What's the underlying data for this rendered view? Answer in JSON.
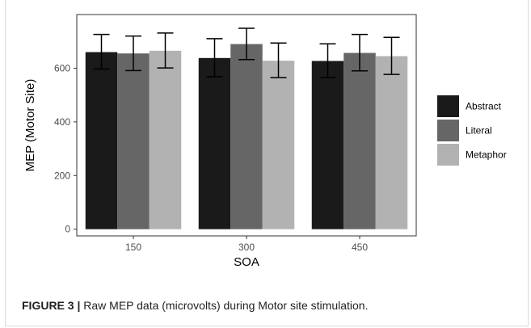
{
  "chart_data": {
    "type": "bar",
    "categories": [
      "150",
      "300",
      "450"
    ],
    "series": [
      {
        "name": "Abstract",
        "color": "#1a1a1a",
        "values": [
          660,
          638,
          627
        ],
        "err_low": [
          597,
          568,
          565
        ],
        "err_high": [
          726,
          710,
          691
        ]
      },
      {
        "name": "Literal",
        "color": "#666666",
        "values": [
          655,
          690,
          657
        ],
        "err_low": [
          591,
          632,
          590
        ],
        "err_high": [
          720,
          749,
          726
        ]
      },
      {
        "name": "Metaphor",
        "color": "#b2b2b2",
        "values": [
          665,
          628,
          645
        ],
        "err_low": [
          601,
          565,
          577
        ],
        "err_high": [
          731,
          694,
          715
        ]
      }
    ],
    "xlabel": "SOA",
    "ylabel": "MEP (Motor Site)",
    "ylim": [
      -25,
      800
    ],
    "yticks": [
      0,
      200,
      400,
      600
    ],
    "grid": false,
    "legend_position": "right"
  },
  "caption": {
    "label": "FIGURE 3 |",
    "text": " Raw MEP data (microvolts) during Motor site stimulation."
  }
}
